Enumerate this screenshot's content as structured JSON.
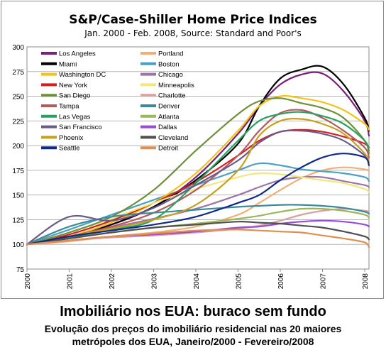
{
  "chart_data": {
    "type": "line",
    "title": "S&P/Case-Shiller Home Price Indices",
    "subtitle": "Jan. 2000 - Feb. 2008, Source: Standard and Poor's",
    "xlabel": "",
    "ylabel": "",
    "xlim": [
      2000.0,
      2008.1
    ],
    "ylim": [
      75,
      300
    ],
    "y_ticks": [
      75,
      100,
      125,
      150,
      175,
      200,
      225,
      250,
      275,
      300
    ],
    "x_ticks": [
      2000,
      2001,
      2002,
      2003,
      2004,
      2005,
      2006,
      2007,
      2008
    ],
    "grid": true,
    "legend_position": "top-left",
    "series": [
      {
        "name": "Los Angeles",
        "color": "#7b1f7b",
        "points": [
          [
            2000,
            100
          ],
          [
            2001,
            108
          ],
          [
            2002,
            120
          ],
          [
            2003,
            138
          ],
          [
            2004,
            168
          ],
          [
            2005,
            212
          ],
          [
            2005.5,
            240
          ],
          [
            2006,
            262
          ],
          [
            2006.5,
            272
          ],
          [
            2007,
            273
          ],
          [
            2007.5,
            255
          ],
          [
            2008,
            225
          ],
          [
            2008.1,
            210
          ]
        ]
      },
      {
        "name": "Portland",
        "color": "#f2ae78",
        "points": [
          [
            2000,
            100
          ],
          [
            2001,
            103
          ],
          [
            2002,
            108
          ],
          [
            2003,
            112
          ],
          [
            2004,
            118
          ],
          [
            2005,
            130
          ],
          [
            2005.5,
            142
          ],
          [
            2006,
            155
          ],
          [
            2006.5,
            167
          ],
          [
            2007,
            175
          ],
          [
            2007.5,
            178
          ],
          [
            2008,
            176
          ],
          [
            2008.1,
            174
          ]
        ]
      },
      {
        "name": "Miami",
        "color": "#000000",
        "points": [
          [
            2000,
            100
          ],
          [
            2001,
            108
          ],
          [
            2002,
            120
          ],
          [
            2003,
            138
          ],
          [
            2004,
            165
          ],
          [
            2005,
            202
          ],
          [
            2005.5,
            240
          ],
          [
            2006,
            268
          ],
          [
            2006.5,
            277
          ],
          [
            2007,
            280
          ],
          [
            2007.5,
            262
          ],
          [
            2008,
            228
          ],
          [
            2008.1,
            215
          ]
        ]
      },
      {
        "name": "Boston",
        "color": "#4aa0c4",
        "points": [
          [
            2000,
            100
          ],
          [
            2001,
            115
          ],
          [
            2002,
            130
          ],
          [
            2003,
            145
          ],
          [
            2004,
            160
          ],
          [
            2005,
            175
          ],
          [
            2005.5,
            182
          ],
          [
            2006,
            180
          ],
          [
            2006.5,
            176
          ],
          [
            2007,
            174
          ],
          [
            2007.5,
            172
          ],
          [
            2008,
            168
          ],
          [
            2008.1,
            164
          ]
        ]
      },
      {
        "name": "Washington DC",
        "color": "#f2c417",
        "points": [
          [
            2000,
            100
          ],
          [
            2001,
            108
          ],
          [
            2002,
            122
          ],
          [
            2003,
            142
          ],
          [
            2004,
            172
          ],
          [
            2005,
            215
          ],
          [
            2005.5,
            240
          ],
          [
            2006,
            250
          ],
          [
            2006.5,
            248
          ],
          [
            2007,
            244
          ],
          [
            2007.5,
            236
          ],
          [
            2008,
            222
          ],
          [
            2008.1,
            216
          ]
        ]
      },
      {
        "name": "Chicago",
        "color": "#9b74a8",
        "points": [
          [
            2000,
            100
          ],
          [
            2001,
            108
          ],
          [
            2002,
            117
          ],
          [
            2003,
            126
          ],
          [
            2004,
            136
          ],
          [
            2005,
            150
          ],
          [
            2005.5,
            158
          ],
          [
            2006,
            165
          ],
          [
            2006.5,
            168
          ],
          [
            2007,
            168
          ],
          [
            2007.5,
            164
          ],
          [
            2008,
            160
          ],
          [
            2008.1,
            158
          ]
        ]
      },
      {
        "name": "New York",
        "color": "#d42020",
        "points": [
          [
            2000,
            100
          ],
          [
            2001,
            110
          ],
          [
            2002,
            124
          ],
          [
            2003,
            142
          ],
          [
            2004,
            163
          ],
          [
            2005,
            190
          ],
          [
            2005.5,
            205
          ],
          [
            2006,
            214
          ],
          [
            2006.5,
            216
          ],
          [
            2007,
            214
          ],
          [
            2007.5,
            209
          ],
          [
            2008,
            202
          ],
          [
            2008.1,
            198
          ]
        ]
      },
      {
        "name": "Minneapolis",
        "color": "#f0e87a",
        "points": [
          [
            2000,
            100
          ],
          [
            2001,
            112
          ],
          [
            2002,
            126
          ],
          [
            2003,
            142
          ],
          [
            2004,
            156
          ],
          [
            2005,
            168
          ],
          [
            2005.5,
            172
          ],
          [
            2006,
            171
          ],
          [
            2006.5,
            168
          ],
          [
            2007,
            165
          ],
          [
            2007.5,
            162
          ],
          [
            2008,
            156
          ],
          [
            2008.1,
            153
          ]
        ]
      },
      {
        "name": "San Diego",
        "color": "#6f8f3a",
        "points": [
          [
            2000,
            100
          ],
          [
            2001,
            112
          ],
          [
            2002,
            128
          ],
          [
            2003,
            155
          ],
          [
            2004,
            195
          ],
          [
            2005,
            232
          ],
          [
            2005.5,
            245
          ],
          [
            2006,
            248
          ],
          [
            2006.5,
            243
          ],
          [
            2007,
            238
          ],
          [
            2007.5,
            228
          ],
          [
            2008,
            205
          ],
          [
            2008.1,
            192
          ]
        ]
      },
      {
        "name": "Charlotte",
        "color": "#d9a0a0",
        "points": [
          [
            2000,
            100
          ],
          [
            2001,
            104
          ],
          [
            2002,
            107
          ],
          [
            2003,
            109
          ],
          [
            2004,
            112
          ],
          [
            2005,
            116
          ],
          [
            2005.5,
            119
          ],
          [
            2006,
            124
          ],
          [
            2006.5,
            130
          ],
          [
            2007,
            134
          ],
          [
            2007.5,
            136
          ],
          [
            2008,
            134
          ],
          [
            2008.1,
            133
          ]
        ]
      },
      {
        "name": "Tampa",
        "color": "#b55a5a",
        "points": [
          [
            2000,
            100
          ],
          [
            2001,
            108
          ],
          [
            2002,
            118
          ],
          [
            2003,
            132
          ],
          [
            2004,
            155
          ],
          [
            2005,
            190
          ],
          [
            2005.5,
            215
          ],
          [
            2006,
            233
          ],
          [
            2006.5,
            236
          ],
          [
            2007,
            228
          ],
          [
            2007.5,
            215
          ],
          [
            2008,
            198
          ],
          [
            2008.1,
            188
          ]
        ]
      },
      {
        "name": "Denver",
        "color": "#3a8a9a",
        "points": [
          [
            2000,
            100
          ],
          [
            2001,
            118
          ],
          [
            2002,
            128
          ],
          [
            2003,
            132
          ],
          [
            2004,
            135
          ],
          [
            2005,
            138
          ],
          [
            2005.5,
            139
          ],
          [
            2006,
            140
          ],
          [
            2006.5,
            140
          ],
          [
            2007,
            139
          ],
          [
            2007.5,
            137
          ],
          [
            2008,
            133
          ],
          [
            2008.1,
            131
          ]
        ]
      },
      {
        "name": "Las Vegas",
        "color": "#2aa060",
        "points": [
          [
            2000,
            100
          ],
          [
            2001,
            107
          ],
          [
            2002,
            115
          ],
          [
            2003,
            125
          ],
          [
            2004,
            162
          ],
          [
            2005,
            205
          ],
          [
            2005.5,
            225
          ],
          [
            2006,
            232
          ],
          [
            2006.5,
            234
          ],
          [
            2007,
            230
          ],
          [
            2007.5,
            222
          ],
          [
            2008,
            205
          ],
          [
            2008.1,
            195
          ]
        ]
      },
      {
        "name": "Atlanta",
        "color": "#9ab85a",
        "points": [
          [
            2000,
            100
          ],
          [
            2001,
            106
          ],
          [
            2002,
            112
          ],
          [
            2003,
            117
          ],
          [
            2004,
            121
          ],
          [
            2005,
            126
          ],
          [
            2005.5,
            129
          ],
          [
            2006,
            133
          ],
          [
            2006.5,
            136
          ],
          [
            2007,
            136
          ],
          [
            2007.5,
            134
          ],
          [
            2008,
            130
          ],
          [
            2008.1,
            127
          ]
        ]
      },
      {
        "name": "San Francisco",
        "color": "#6a5a8a",
        "points": [
          [
            2000,
            100
          ],
          [
            2001,
            128
          ],
          [
            2002,
            124
          ],
          [
            2003,
            137
          ],
          [
            2004,
            160
          ],
          [
            2005,
            185
          ],
          [
            2005.5,
            203
          ],
          [
            2006,
            214
          ],
          [
            2006.5,
            215
          ],
          [
            2007,
            212
          ],
          [
            2007.5,
            205
          ],
          [
            2008,
            190
          ],
          [
            2008.1,
            183
          ]
        ]
      },
      {
        "name": "Dallas",
        "color": "#9a4ad8",
        "points": [
          [
            2000,
            100
          ],
          [
            2001,
            104
          ],
          [
            2002,
            108
          ],
          [
            2003,
            110
          ],
          [
            2004,
            113
          ],
          [
            2005,
            117
          ],
          [
            2005.5,
            118
          ],
          [
            2006,
            121
          ],
          [
            2006.5,
            123
          ],
          [
            2007,
            124
          ],
          [
            2007.5,
            123
          ],
          [
            2008,
            120
          ],
          [
            2008.1,
            118
          ]
        ]
      },
      {
        "name": "Phoenix",
        "color": "#c8a020",
        "points": [
          [
            2000,
            100
          ],
          [
            2001,
            108
          ],
          [
            2002,
            116
          ],
          [
            2003,
            125
          ],
          [
            2004,
            140
          ],
          [
            2005,
            175
          ],
          [
            2005.5,
            210
          ],
          [
            2006,
            225
          ],
          [
            2006.5,
            227
          ],
          [
            2007,
            222
          ],
          [
            2007.5,
            212
          ],
          [
            2008,
            192
          ],
          [
            2008.1,
            183
          ]
        ]
      },
      {
        "name": "Cleveland",
        "color": "#505050",
        "points": [
          [
            2000,
            100
          ],
          [
            2001,
            106
          ],
          [
            2002,
            112
          ],
          [
            2003,
            117
          ],
          [
            2004,
            120
          ],
          [
            2005,
            123
          ],
          [
            2005.5,
            122
          ],
          [
            2006,
            121
          ],
          [
            2006.5,
            119
          ],
          [
            2007,
            117
          ],
          [
            2007.5,
            113
          ],
          [
            2008,
            108
          ],
          [
            2008.1,
            105
          ]
        ]
      },
      {
        "name": "Seattle",
        "color": "#102888",
        "points": [
          [
            2000,
            100
          ],
          [
            2001,
            108
          ],
          [
            2002,
            114
          ],
          [
            2003,
            120
          ],
          [
            2004,
            128
          ],
          [
            2005,
            142
          ],
          [
            2005.5,
            150
          ],
          [
            2006,
            165
          ],
          [
            2006.5,
            178
          ],
          [
            2007,
            188
          ],
          [
            2007.5,
            192
          ],
          [
            2008,
            188
          ],
          [
            2008.1,
            180
          ]
        ]
      },
      {
        "name": "Detroit",
        "color": "#e09050",
        "points": [
          [
            2000,
            100
          ],
          [
            2001,
            104
          ],
          [
            2002,
            108
          ],
          [
            2003,
            111
          ],
          [
            2004,
            114
          ],
          [
            2005,
            115
          ],
          [
            2005.5,
            114
          ],
          [
            2006,
            113
          ],
          [
            2006.5,
            112
          ],
          [
            2007,
            109
          ],
          [
            2007.5,
            106
          ],
          [
            2008,
            102
          ],
          [
            2008.1,
            97
          ]
        ]
      }
    ]
  },
  "caption": {
    "title": "Imobiliário nos EUA: buraco sem fundo",
    "line1": "Evolução dos preços do imobiliário residencial nas 20 maiores",
    "line2": "metrópoles dos EUA, Janeiro/2000 - Fevereiro/2008"
  }
}
